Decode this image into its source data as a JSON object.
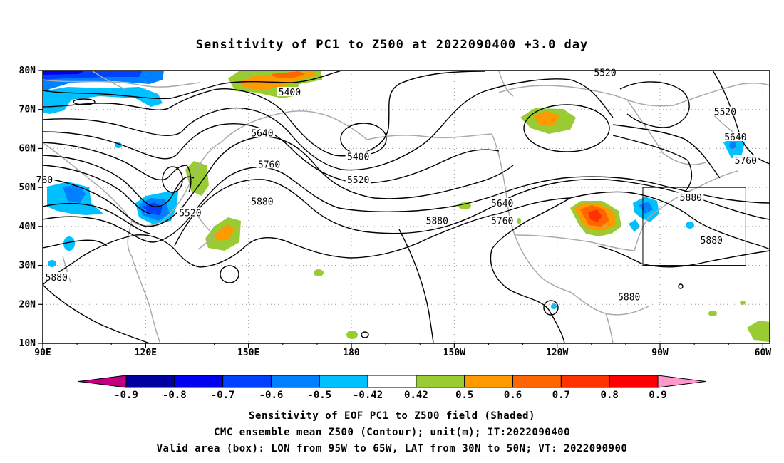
{
  "title": "Sensitivity of PC1 to Z500 at 2022090400 +3.0 day",
  "map": {
    "lat_labels": [
      "80N",
      "70N",
      "60N",
      "50N",
      "40N",
      "30N",
      "20N",
      "10N"
    ],
    "lon_labels": [
      "90E",
      "120E",
      "150E",
      "180",
      "150W",
      "120W",
      "90W",
      "60W"
    ],
    "lat_range": [
      10,
      80
    ],
    "lon_range_east": [
      90,
      302
    ],
    "grid": "dotted",
    "box": {
      "lon_w": -95,
      "lon_e": -65,
      "lat_s": 30,
      "lat_n": 50
    },
    "contour_labels": [
      {
        "text": "5400",
        "lon": 162,
        "lat": 74.5
      },
      {
        "text": "5520",
        "lon": 254,
        "lat": 79.5
      },
      {
        "text": "5520",
        "lon": 289,
        "lat": 69.5
      },
      {
        "text": "5640",
        "lon": 154,
        "lat": 64
      },
      {
        "text": "5400",
        "lon": 182,
        "lat": 58
      },
      {
        "text": "5520",
        "lon": 182,
        "lat": 52
      },
      {
        "text": "5640",
        "lon": 292,
        "lat": 63
      },
      {
        "text": "5760",
        "lon": 156,
        "lat": 56
      },
      {
        "text": "5760",
        "lon": 295,
        "lat": 57
      },
      {
        "text": "760",
        "lon": 90.5,
        "lat": 52
      },
      {
        "text": "5520",
        "lon": 133,
        "lat": 43.5
      },
      {
        "text": "5640",
        "lon": 224,
        "lat": 46
      },
      {
        "text": "5880",
        "lon": 154,
        "lat": 46.5
      },
      {
        "text": "5880",
        "lon": 279,
        "lat": 47.5
      },
      {
        "text": "5880",
        "lon": 205,
        "lat": 41.5
      },
      {
        "text": "5760",
        "lon": 224,
        "lat": 41.5
      },
      {
        "text": "5880",
        "lon": 285,
        "lat": 36.5
      },
      {
        "text": "5880",
        "lon": 94,
        "lat": 27
      },
      {
        "text": "5880",
        "lon": 261,
        "lat": 22
      }
    ]
  },
  "colorbar": {
    "levels": [
      "-0.9",
      "-0.8",
      "-0.7",
      "-0.6",
      "-0.5",
      "-0.42",
      "0.42",
      "0.5",
      "0.6",
      "0.7",
      "0.8",
      "0.9"
    ],
    "colors": [
      "#c00080",
      "#0000a0",
      "#0000ee",
      "#0040ff",
      "#0080ff",
      "#00c0ff",
      "#ffffff",
      "#99cc33",
      "#ff9900",
      "#ff6600",
      "#ff3300",
      "#ff0000",
      "#ff99cc"
    ]
  },
  "footer": {
    "line1": "Sensitivity of EOF PC1 to Z500 field (Shaded)",
    "line2": "CMC ensemble mean Z500 (Contour); unit(m); IT:2022090400",
    "line3": "Valid area (box): LON from 95W to 65W, LAT from 30N to 50N; VT: 2022090900"
  }
}
